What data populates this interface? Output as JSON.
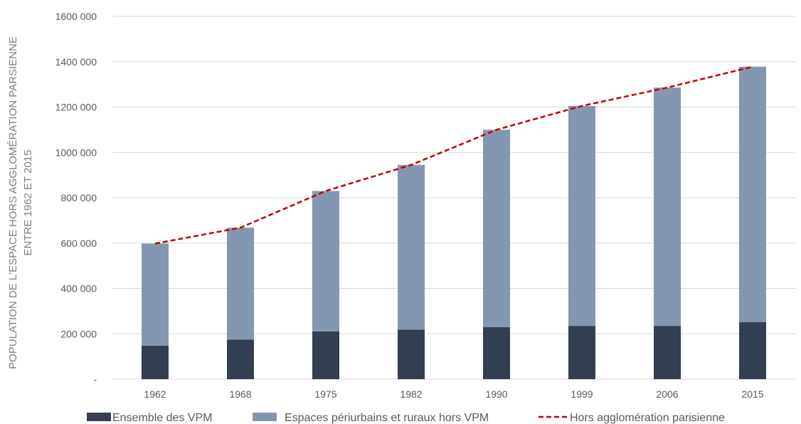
{
  "chart_data": {
    "type": "bar",
    "stacked": true,
    "categories": [
      "1962",
      "1968",
      "1975",
      "1982",
      "1990",
      "1999",
      "2006",
      "2015"
    ],
    "series": [
      {
        "name": "Ensemble des VPM",
        "kind": "bar",
        "color": "#333f50",
        "values": [
          148000,
          175000,
          211000,
          218000,
          230000,
          235000,
          235000,
          252000
        ]
      },
      {
        "name": "Espaces périurbains et ruraux hors VPM",
        "kind": "bar",
        "color": "#8497b0",
        "values": [
          450000,
          493000,
          619000,
          727000,
          870000,
          970000,
          1051000,
          1126000
        ]
      },
      {
        "name": "Hors agglomération parisienne",
        "kind": "line",
        "style": "dashed",
        "color": "#c00000",
        "values": [
          598000,
          668000,
          830000,
          945000,
          1100000,
          1205000,
          1286000,
          1378000
        ]
      }
    ],
    "ylabel_lines": [
      "POPULATION DE L'ESPACE HORS AGGLOMÉRATION PARSIENNE",
      "ENTRE 1962 ET 2015"
    ],
    "ylim": [
      0,
      1600000
    ],
    "yticks": [
      0,
      200000,
      400000,
      600000,
      800000,
      1000000,
      1200000,
      1400000,
      1600000
    ],
    "ytick_labels": [
      "-",
      "200 000",
      "400 000",
      "600 000",
      "800 000",
      "1000 000",
      "1200 000",
      "1400 000",
      "1600 000"
    ],
    "grid": true,
    "legend_position": "bottom"
  }
}
